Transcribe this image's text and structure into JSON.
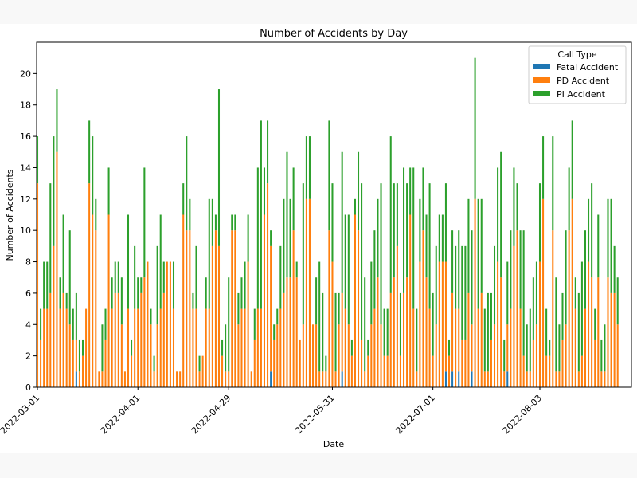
{
  "chart_data": {
    "type": "bar",
    "stacked": true,
    "title": "Number of Accidents by Day",
    "xlabel": "Date",
    "ylabel": "Number of Accidents",
    "ylim": [
      0,
      22
    ],
    "yticks": [
      0,
      2,
      4,
      6,
      8,
      10,
      12,
      14,
      16,
      18,
      20
    ],
    "xtick_labels": [
      "2022-03-01",
      "2022-04-01",
      "2022-04-29",
      "2022-05-31",
      "2022-07-01",
      "2022-08-03"
    ],
    "xtick_indices": [
      0,
      31,
      59,
      91,
      122,
      155
    ],
    "x_start": "2022-03-01",
    "x_end": "2022-08-31",
    "legend": {
      "title": "Call Type",
      "position": "upper right"
    },
    "colors": {
      "Fatal Accident": "#1f77b4",
      "PD Accident": "#ff7f0e",
      "PI Accident": "#2ca02c"
    },
    "grid": false,
    "series": [
      {
        "name": "Fatal Accident",
        "values": [
          0,
          0,
          0,
          0,
          0,
          0,
          0,
          0,
          0,
          0,
          0,
          0,
          1,
          0,
          0,
          0,
          0,
          0,
          0,
          0,
          0,
          0,
          0,
          0,
          0,
          0,
          0,
          0,
          0,
          0,
          0,
          0,
          0,
          0,
          0,
          0,
          0,
          0,
          0,
          0,
          0,
          0,
          0,
          0,
          0,
          0,
          0,
          0,
          0,
          0,
          0,
          0,
          0,
          0,
          0,
          0,
          0,
          0,
          0,
          0,
          0,
          0,
          0,
          0,
          0,
          0,
          0,
          0,
          0,
          0,
          0,
          0,
          1,
          0,
          0,
          0,
          0,
          0,
          0,
          0,
          0,
          0,
          0,
          0,
          0,
          0,
          0,
          0,
          0,
          0,
          0,
          0,
          0,
          0,
          1,
          0,
          0,
          0,
          0,
          0,
          0,
          0,
          0,
          0,
          0,
          0,
          0,
          0,
          0,
          0,
          0,
          0,
          0,
          0,
          0,
          0,
          0,
          0,
          0,
          0,
          0,
          0,
          0,
          0,
          0,
          0,
          1,
          0,
          1,
          0,
          1,
          0,
          0,
          0,
          1,
          0,
          0,
          0,
          0,
          0,
          0,
          0,
          0,
          0,
          0,
          1,
          0,
          0,
          0,
          0,
          0,
          0,
          0,
          0,
          0,
          0,
          0,
          0,
          0,
          0,
          0,
          0,
          0,
          0,
          0,
          0,
          0,
          0,
          0,
          0,
          0,
          0,
          0,
          0,
          0,
          0,
          0,
          0,
          0,
          0,
          0,
          0,
          0,
          0
        ]
      },
      {
        "name": "PD Accident",
        "values": [
          13,
          3,
          5,
          5,
          6,
          9,
          15,
          5,
          6,
          5,
          4,
          3,
          2,
          1,
          2,
          5,
          13,
          11,
          10,
          1,
          1,
          3,
          11,
          5,
          6,
          6,
          4,
          1,
          5,
          2,
          5,
          5,
          6,
          7,
          8,
          4,
          1,
          4,
          5,
          6,
          8,
          8,
          5,
          1,
          1,
          11,
          10,
          10,
          5,
          5,
          1,
          2,
          5,
          5,
          9,
          10,
          9,
          2,
          1,
          1,
          10,
          10,
          4,
          5,
          5,
          8,
          1,
          3,
          5,
          5,
          11,
          13,
          8,
          3,
          4,
          5,
          6,
          7,
          7,
          10,
          7,
          3,
          4,
          12,
          12,
          4,
          4,
          1,
          1,
          1,
          10,
          8,
          1,
          4,
          5,
          5,
          4,
          2,
          11,
          10,
          3,
          1,
          2,
          4,
          5,
          7,
          4,
          2,
          2,
          6,
          7,
          9,
          2,
          6,
          7,
          11,
          5,
          1,
          8,
          10,
          7,
          5,
          2,
          4,
          8,
          8,
          7,
          2,
          5,
          5,
          4,
          3,
          3,
          6,
          3,
          12,
          5,
          6,
          1,
          1,
          3,
          4,
          8,
          7,
          1,
          3,
          5,
          9,
          10,
          5,
          2,
          1,
          1,
          3,
          4,
          8,
          12,
          2,
          2,
          10,
          1,
          1,
          3,
          4,
          10,
          12,
          5,
          1,
          2,
          5,
          8,
          7,
          3,
          7,
          1,
          1,
          7,
          6,
          6,
          4
        ]
      },
      {
        "name": "PI Accident",
        "values": [
          3,
          2,
          3,
          3,
          7,
          7,
          4,
          2,
          5,
          1,
          6,
          2,
          3,
          2,
          1,
          0,
          4,
          5,
          2,
          0,
          3,
          2,
          3,
          2,
          2,
          2,
          3,
          0,
          6,
          1,
          4,
          2,
          1,
          7,
          0,
          1,
          1,
          5,
          6,
          2,
          0,
          0,
          3,
          0,
          0,
          2,
          6,
          2,
          1,
          4,
          1,
          0,
          2,
          7,
          3,
          1,
          10,
          1,
          3,
          6,
          1,
          1,
          2,
          2,
          3,
          3,
          0,
          2,
          9,
          12,
          3,
          4,
          1,
          1,
          1,
          4,
          6,
          8,
          5,
          4,
          1,
          0,
          9,
          4,
          4,
          0,
          3,
          7,
          5,
          1,
          7,
          5,
          5,
          2,
          9,
          6,
          7,
          1,
          1,
          5,
          10,
          6,
          1,
          4,
          5,
          5,
          9,
          3,
          3,
          10,
          6,
          4,
          4,
          8,
          6,
          3,
          9,
          4,
          4,
          4,
          4,
          8,
          4,
          5,
          3,
          3,
          5,
          1,
          4,
          4,
          5,
          6,
          6,
          6,
          6,
          9,
          7,
          6,
          4,
          5,
          3,
          5,
          6,
          8,
          2,
          4,
          5,
          5,
          3,
          5,
          8,
          3,
          4,
          4,
          4,
          5,
          4,
          3,
          1,
          6,
          6,
          3,
          3,
          6,
          4,
          5,
          2,
          5,
          6,
          5,
          4,
          6,
          2,
          4,
          2,
          3,
          5,
          6,
          3,
          3
        ]
      }
    ]
  }
}
